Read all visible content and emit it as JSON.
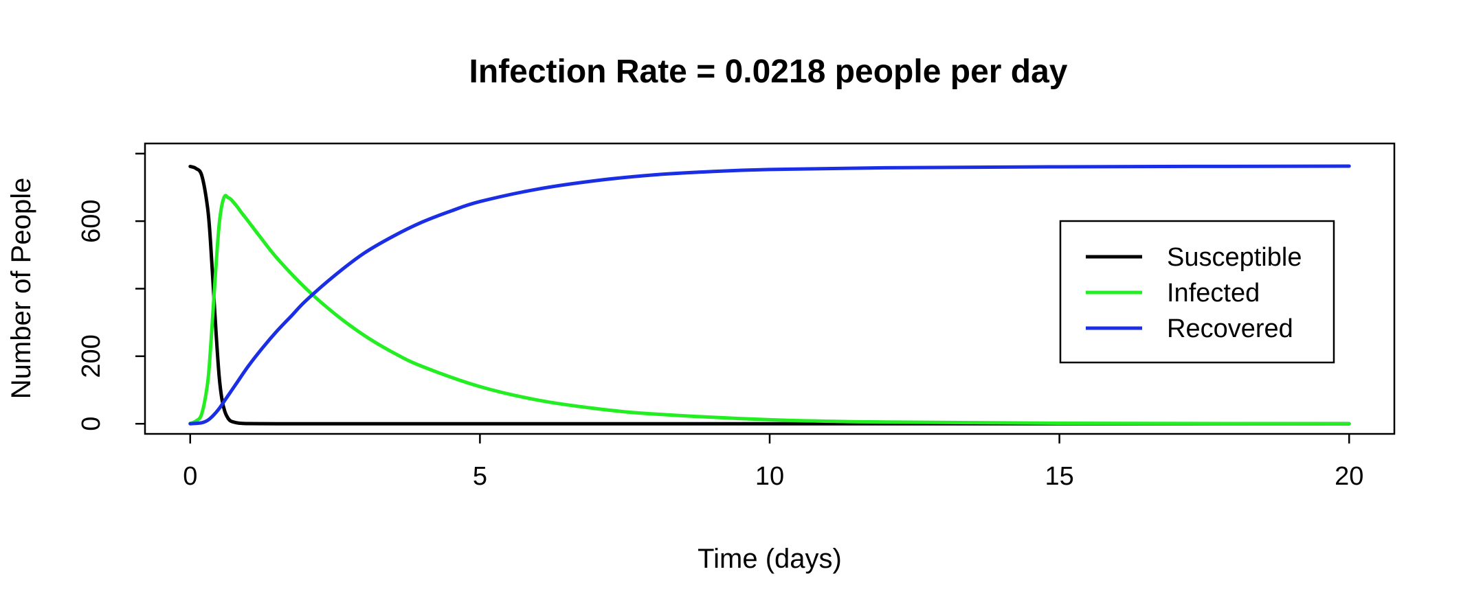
{
  "chart_data": {
    "type": "line",
    "title": "Infection Rate = 0.0218 people per day",
    "xlabel": "Time (days)",
    "ylabel": "Number of People",
    "xlim": [
      -0.78,
      20.78
    ],
    "ylim": [
      -30,
      830
    ],
    "xticks": [
      0,
      5,
      10,
      15,
      20
    ],
    "yticks": [
      0,
      200,
      400,
      600,
      800
    ],
    "ytick_labels": [
      "0",
      "200",
      "",
      "600",
      ""
    ],
    "grid": false,
    "legend": "right",
    "series": [
      {
        "name": "Susceptible",
        "color": "#000000",
        "x": [
          0,
          0.1,
          0.2,
          0.3,
          0.35,
          0.4,
          0.45,
          0.5,
          0.55,
          0.6,
          0.65,
          0.7,
          0.8,
          0.9,
          1,
          1.2,
          1.5,
          2,
          5,
          10,
          15,
          20
        ],
        "y": [
          762,
          756,
          735,
          640,
          540,
          400,
          260,
          140,
          70,
          35,
          17,
          8,
          3,
          1,
          0.5,
          0.2,
          0,
          0,
          0,
          0,
          0,
          0
        ]
      },
      {
        "name": "Infected",
        "color": "#22ee22",
        "x": [
          0,
          0.1,
          0.2,
          0.3,
          0.35,
          0.4,
          0.45,
          0.5,
          0.55,
          0.6,
          0.65,
          0.7,
          0.8,
          0.9,
          1,
          1.2,
          1.5,
          2,
          2.5,
          3,
          3.5,
          4,
          5,
          6,
          7,
          8,
          10,
          12,
          15,
          20
        ],
        "y": [
          1,
          8,
          30,
          120,
          220,
          350,
          480,
          590,
          650,
          675,
          670,
          665,
          645,
          622,
          600,
          555,
          490,
          400,
          325,
          262,
          211,
          170,
          110,
          70,
          45,
          29,
          12,
          5,
          1.5,
          0.1
        ]
      },
      {
        "name": "Recovered",
        "color": "#1a2ee6",
        "x": [
          0,
          0.2,
          0.3,
          0.4,
          0.5,
          0.6,
          0.7,
          0.8,
          1,
          1.25,
          1.5,
          1.75,
          2,
          2.5,
          3,
          3.5,
          4,
          4.5,
          5,
          6,
          7,
          8,
          9,
          10,
          12,
          15,
          20
        ],
        "y": [
          0,
          3,
          10,
          25,
          45,
          70,
          95,
          120,
          170,
          225,
          275,
          320,
          365,
          440,
          505,
          555,
          597,
          630,
          658,
          695,
          720,
          737,
          747,
          753,
          758,
          761,
          763
        ]
      }
    ]
  }
}
